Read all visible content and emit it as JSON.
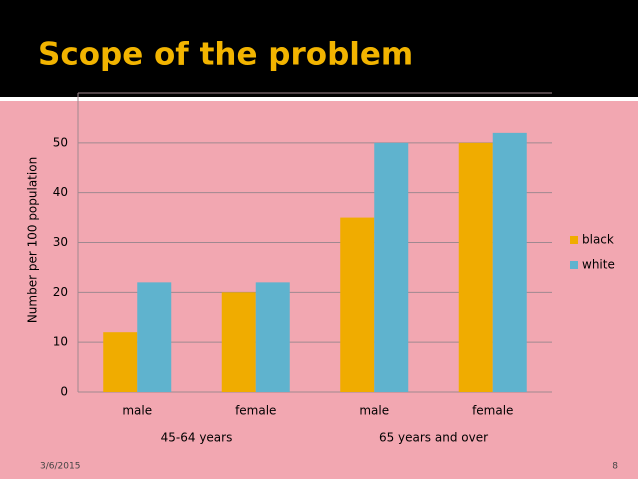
{
  "chart_data": {
    "type": "bar",
    "title": "Scope of the problem",
    "y_label": "Number per 100 population",
    "categories": [
      "male",
      "female",
      "male",
      "female"
    ],
    "group_labels": [
      "45-64 years",
      "65 years and over"
    ],
    "series": [
      {
        "name": "black",
        "color": "#f0ac00",
        "values": [
          12,
          20,
          35,
          50
        ]
      },
      {
        "name": "white",
        "color": "#5fb3ce",
        "values": [
          22,
          22,
          50,
          52
        ]
      }
    ],
    "ylim": [
      0,
      60
    ],
    "yticks": [
      0,
      10,
      20,
      30,
      40,
      50
    ],
    "grid": true,
    "legend": "right"
  },
  "footer": {
    "date": "3/6/2015",
    "page": "8"
  }
}
